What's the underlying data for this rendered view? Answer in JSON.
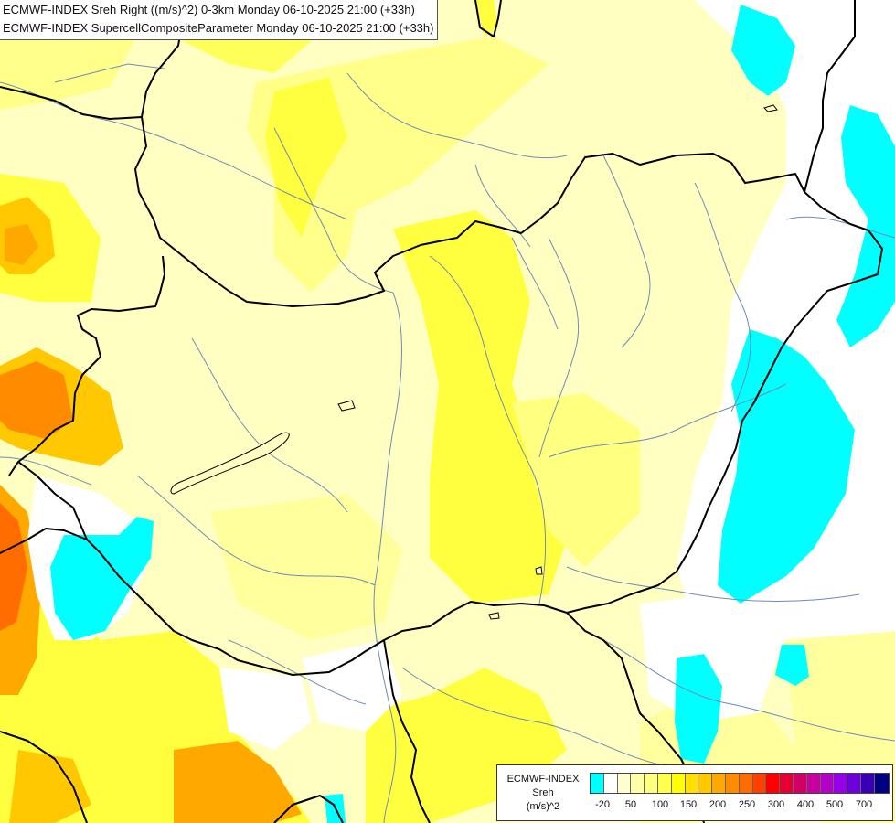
{
  "titles": {
    "line1": "ECMWF-INDEX Sreh Right ((m/s)^2) 0-3km Monday 06-10-2025 21:00 (+33h)",
    "line2": "ECMWF-INDEX SupercellCompositeParameter Monday 06-10-2025 21:00 (+33h)"
  },
  "legend": {
    "title": "ECMWF-INDEX",
    "variable": "Sreh",
    "unit": "(m/s)^2",
    "colors": [
      "#00ffff",
      "#ffffff",
      "#ffffd0",
      "#ffffa8",
      "#ffff80",
      "#ffff50",
      "#ffff00",
      "#ffe000",
      "#ffc800",
      "#ffa800",
      "#ff8c00",
      "#ff6c00",
      "#ff4000",
      "#ff0000",
      "#e60032",
      "#d20064",
      "#c800a0",
      "#b400c8",
      "#9600e6",
      "#6e00dc",
      "#3c00b4",
      "#000080"
    ],
    "tick_labels": [
      "-20",
      "50",
      "100",
      "150",
      "200",
      "250",
      "300",
      "400",
      "500",
      "700"
    ]
  },
  "colors": {
    "land_base": "#ffffc2",
    "cyan": "#00ffff",
    "border": "#000000",
    "river": "#6e8cb4"
  }
}
